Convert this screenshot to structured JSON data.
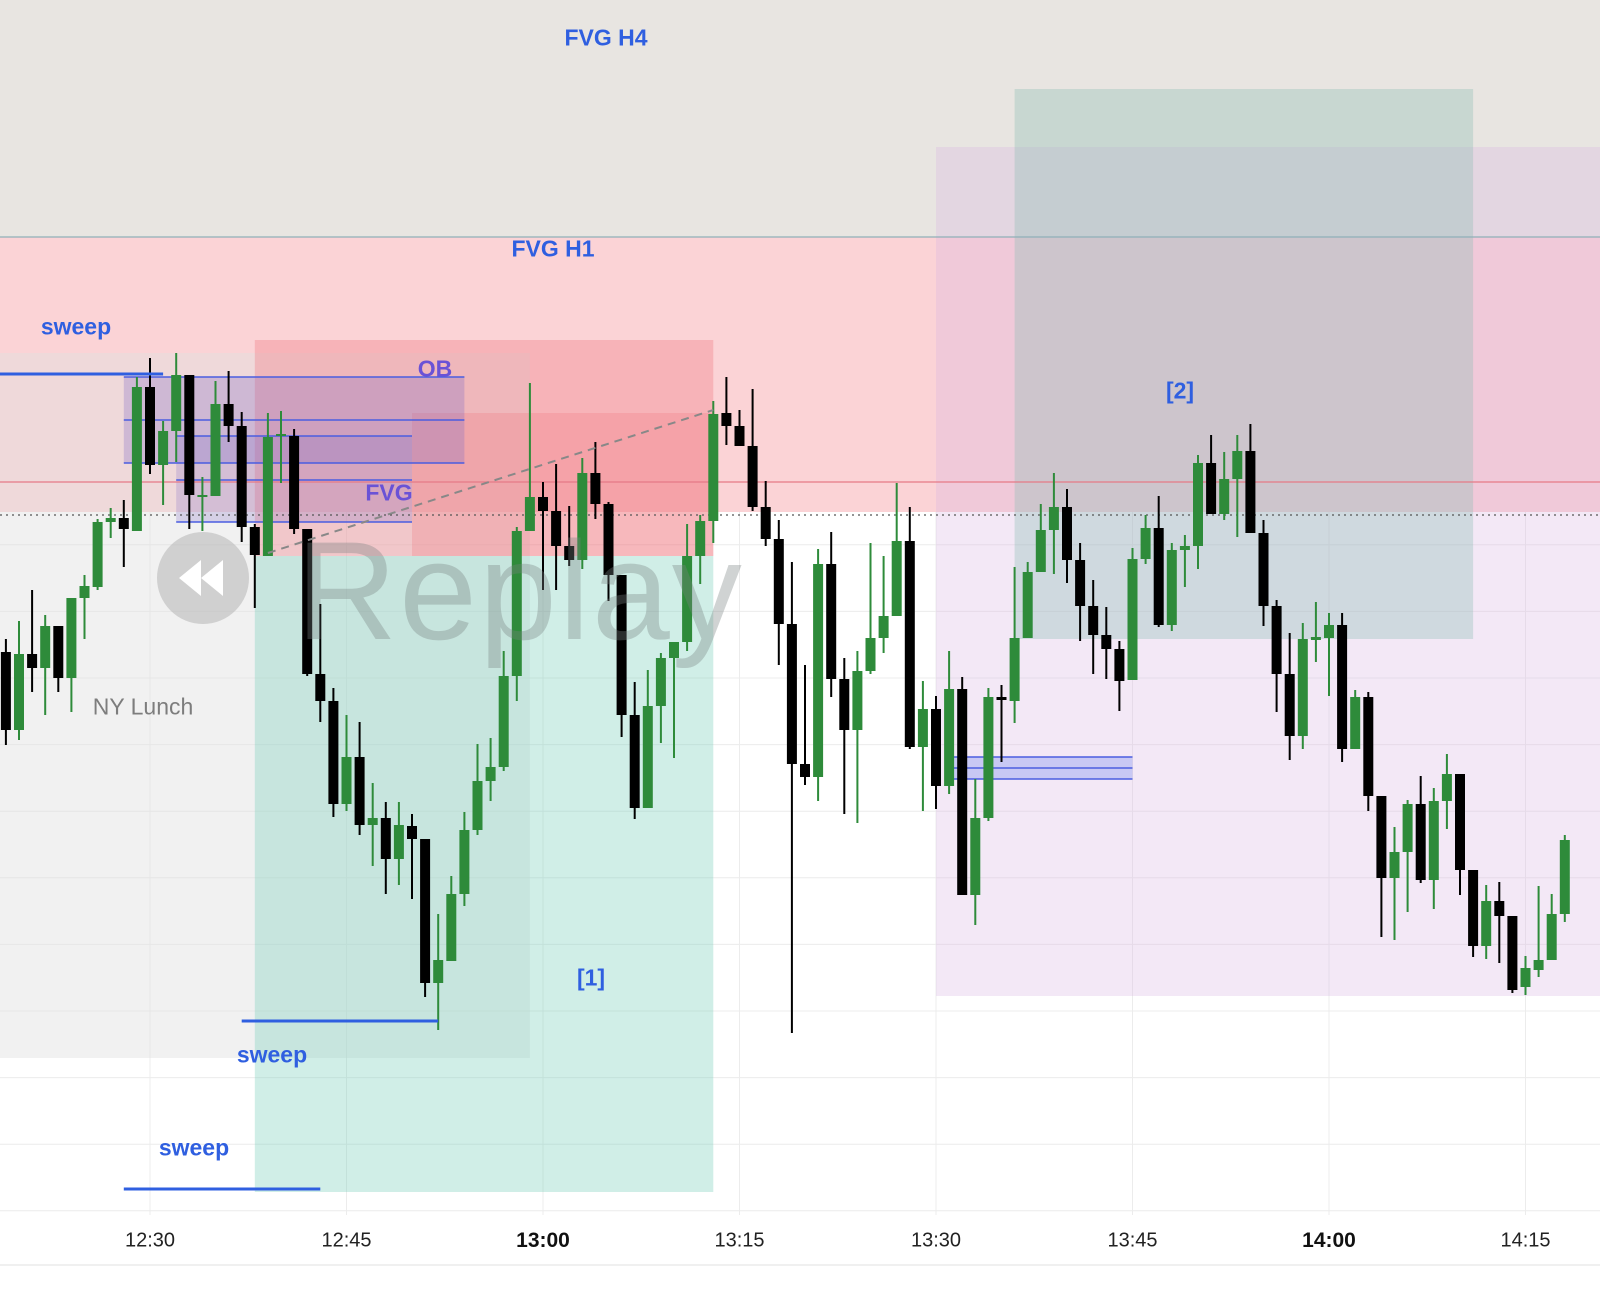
{
  "chart_data": {
    "type": "candlestick",
    "title": "",
    "interval": "1m",
    "start_time": "12:19",
    "x_ticks": [
      {
        "label": "12:30",
        "bold": false
      },
      {
        "label": "12:45",
        "bold": false
      },
      {
        "label": "13:00",
        "bold": true
      },
      {
        "label": "13:15",
        "bold": false
      },
      {
        "label": "13:30",
        "bold": false
      },
      {
        "label": "13:45",
        "bold": false
      },
      {
        "label": "14:00",
        "bold": true
      },
      {
        "label": "14:15",
        "bold": false
      }
    ],
    "price_axis": "not shown (relative price units)",
    "grid": true,
    "colors": {
      "up": "#2e8b3a",
      "down": "#000000",
      "sweep": "#2f5fe0"
    },
    "ohlc": [
      [
        44.8,
        46.1,
        35.5,
        37.0
      ],
      [
        37.0,
        47.9,
        36.0,
        44.6
      ],
      [
        44.6,
        51.0,
        40.8,
        43.2
      ],
      [
        43.2,
        48.5,
        38.5,
        47.4
      ],
      [
        47.4,
        47.4,
        40.8,
        42.2
      ],
      [
        42.2,
        50.2,
        38.8,
        50.2
      ],
      [
        50.2,
        52.5,
        46.1,
        51.4
      ],
      [
        51.3,
        58.1,
        51.0,
        57.8
      ],
      [
        57.8,
        59.2,
        56.2,
        58.2
      ],
      [
        58.2,
        60.0,
        53.3,
        57.1
      ],
      [
        56.9,
        72.3,
        56.9,
        71.3
      ],
      [
        71.3,
        74.2,
        62.6,
        63.5
      ],
      [
        63.5,
        67.9,
        59.5,
        66.9
      ],
      [
        66.9,
        74.7,
        63.8,
        72.5
      ],
      [
        72.5,
        72.5,
        57.1,
        60.5
      ],
      [
        60.5,
        62.3,
        56.9,
        60.5
      ],
      [
        60.4,
        71.9,
        60.4,
        69.6
      ],
      [
        69.6,
        72.9,
        65.8,
        67.4
      ],
      [
        67.4,
        68.8,
        55.8,
        57.3
      ],
      [
        57.3,
        57.6,
        49.2,
        54.5
      ],
      [
        54.4,
        68.7,
        54.4,
        66.3
      ],
      [
        66.4,
        68.9,
        61.7,
        66.6
      ],
      [
        66.4,
        67.1,
        56.6,
        57.1
      ],
      [
        57.1,
        57.1,
        42.4,
        42.6
      ],
      [
        42.6,
        49.6,
        37.8,
        39.9
      ],
      [
        39.9,
        41.2,
        28.3,
        29.6
      ],
      [
        29.6,
        38.5,
        28.9,
        34.3
      ],
      [
        34.3,
        37.8,
        26.5,
        27.5
      ],
      [
        27.5,
        31.7,
        23.4,
        28.2
      ],
      [
        28.2,
        29.8,
        20.6,
        24.1
      ],
      [
        24.1,
        29.8,
        21.5,
        27.5
      ],
      [
        27.4,
        28.6,
        20.1,
        26.1
      ],
      [
        26.1,
        26.1,
        10.3,
        11.7
      ],
      [
        11.7,
        18.6,
        7.0,
        14.0
      ],
      [
        13.9,
        22.4,
        13.9,
        20.6
      ],
      [
        20.6,
        28.8,
        19.4,
        27.0
      ],
      [
        27.0,
        35.6,
        26.5,
        31.9
      ],
      [
        31.9,
        36.2,
        29.9,
        33.3
      ],
      [
        33.3,
        44.9,
        32.9,
        42.4
      ],
      [
        42.4,
        57.3,
        39.9,
        56.9
      ],
      [
        56.9,
        71.7,
        56.9,
        60.3
      ],
      [
        60.3,
        61.8,
        51.0,
        58.9
      ],
      [
        58.9,
        63.6,
        51.0,
        55.4
      ],
      [
        55.4,
        59.4,
        53.4,
        54.0
      ],
      [
        54.0,
        64.2,
        53.1,
        62.7
      ],
      [
        62.7,
        65.8,
        58.1,
        59.6
      ],
      [
        59.6,
        59.8,
        49.9,
        52.5
      ],
      [
        52.5,
        52.5,
        36.3,
        38.5
      ],
      [
        38.5,
        41.8,
        28.1,
        29.2
      ],
      [
        29.2,
        43.0,
        29.2,
        39.4
      ],
      [
        39.4,
        44.7,
        35.7,
        44.2
      ],
      [
        44.2,
        45.8,
        34.2,
        45.8
      ],
      [
        45.8,
        57.6,
        44.9,
        54.4
      ],
      [
        54.4,
        58.5,
        51.6,
        57.9
      ],
      [
        57.9,
        69.9,
        55.7,
        68.6
      ],
      [
        68.7,
        72.3,
        65.5,
        67.4
      ],
      [
        67.4,
        69.0,
        65.4,
        65.4
      ],
      [
        65.4,
        71.1,
        58.9,
        59.3
      ],
      [
        59.3,
        61.9,
        55.4,
        56.1
      ],
      [
        56.1,
        58.0,
        43.5,
        47.6
      ],
      [
        47.6,
        53.8,
        6.7,
        33.6
      ],
      [
        33.6,
        43.5,
        31.5,
        32.3
      ],
      [
        32.3,
        55.1,
        29.9,
        53.6
      ],
      [
        53.6,
        56.8,
        40.3,
        42.1
      ],
      [
        42.1,
        44.2,
        28.6,
        37.0
      ],
      [
        37.0,
        44.9,
        27.7,
        42.9
      ],
      [
        42.9,
        55.7,
        42.6,
        46.2
      ],
      [
        46.2,
        54.4,
        44.7,
        48.4
      ],
      [
        48.4,
        61.7,
        48.4,
        55.9
      ],
      [
        55.9,
        59.3,
        35.1,
        35.3
      ],
      [
        35.3,
        41.9,
        28.9,
        39.1
      ],
      [
        39.1,
        40.4,
        29.1,
        31.4
      ],
      [
        31.4,
        44.9,
        30.6,
        41.1
      ],
      [
        41.1,
        42.3,
        20.5,
        20.5
      ],
      [
        20.5,
        32.1,
        17.5,
        28.2
      ],
      [
        28.2,
        41.2,
        27.9,
        40.3
      ],
      [
        40.3,
        41.5,
        33.8,
        40.0
      ],
      [
        39.9,
        53.3,
        37.7,
        46.2
      ],
      [
        46.2,
        53.8,
        46.2,
        52.8
      ],
      [
        52.8,
        59.6,
        52.8,
        57.0
      ],
      [
        57.0,
        62.7,
        52.6,
        59.3
      ],
      [
        59.3,
        61.1,
        51.7,
        54.0
      ],
      [
        54.0,
        55.7,
        45.9,
        49.4
      ],
      [
        49.4,
        52.0,
        42.6,
        46.5
      ],
      [
        46.5,
        49.3,
        42.1,
        45.1
      ],
      [
        45.1,
        45.9,
        38.9,
        41.9
      ],
      [
        42.0,
        55.2,
        42.0,
        54.1
      ],
      [
        54.1,
        58.5,
        53.6,
        57.2
      ],
      [
        57.2,
        60.4,
        47.3,
        47.5
      ],
      [
        47.5,
        55.7,
        46.9,
        55.0
      ],
      [
        55.0,
        56.5,
        51.3,
        55.4
      ],
      [
        55.4,
        64.5,
        53.1,
        63.7
      ],
      [
        63.7,
        66.5,
        58.6,
        58.6
      ],
      [
        58.6,
        64.8,
        58.0,
        62.1
      ],
      [
        62.1,
        66.5,
        56.3,
        64.9
      ],
      [
        64.9,
        67.6,
        56.7,
        56.7
      ],
      [
        56.7,
        58.0,
        47.4,
        49.4
      ],
      [
        49.4,
        50.0,
        38.8,
        42.6
      ],
      [
        42.6,
        46.7,
        34.0,
        36.4
      ],
      [
        36.4,
        47.7,
        35.1,
        46.1
      ],
      [
        46.0,
        49.8,
        43.8,
        46.3
      ],
      [
        46.2,
        48.7,
        40.4,
        47.5
      ],
      [
        47.5,
        48.7,
        33.8,
        35.1
      ],
      [
        35.1,
        41.0,
        35.1,
        40.3
      ],
      [
        40.3,
        40.8,
        28.9,
        30.4
      ],
      [
        30.4,
        30.4,
        16.3,
        22.2
      ],
      [
        22.2,
        27.3,
        16.0,
        24.8
      ],
      [
        24.8,
        30.0,
        18.8,
        29.6
      ],
      [
        29.6,
        32.4,
        21.7,
        22.0
      ],
      [
        22.0,
        31.2,
        19.1,
        29.9
      ],
      [
        29.9,
        34.6,
        27.1,
        32.6
      ],
      [
        32.6,
        32.6,
        20.5,
        23.0
      ],
      [
        23.0,
        23.0,
        14.3,
        15.4
      ],
      [
        15.4,
        21.5,
        14.1,
        19.9
      ],
      [
        19.9,
        21.8,
        13.7,
        18.4
      ],
      [
        18.4,
        18.4,
        10.7,
        11.0
      ],
      [
        11.3,
        14.4,
        10.5,
        13.2
      ],
      [
        13.0,
        21.4,
        12.3,
        14.0
      ],
      [
        14.0,
        20.6,
        14.0,
        18.6
      ],
      [
        18.6,
        26.5,
        17.8,
        26.0
      ]
    ],
    "zones": [
      {
        "name": "fvg-h4-zone",
        "from": "12:00",
        "to": "15:00",
        "top": 115,
        "bottom": 86.3,
        "color": "#e8e5e1"
      },
      {
        "name": "fvg-h1-zone",
        "from": "12:00",
        "to": "15:00",
        "top": 86.3,
        "bottom": 58.8,
        "color": "#fbd3d6"
      },
      {
        "name": "ny-lunch-zone",
        "from": "12:00",
        "to": "12:59",
        "top": 74.7,
        "bottom": 4.2,
        "color": "rgba(225,225,225,0.45)"
      },
      {
        "name": "target-zone-1",
        "from": "12:38",
        "to": "13:13",
        "top": 54.4,
        "bottom": -9.2,
        "color": "rgba(120,205,185,0.35)"
      },
      {
        "name": "stop-zone-1",
        "from": "12:38",
        "to": "13:13",
        "top": 76.0,
        "bottom": 54.4,
        "color": "rgba(240,120,130,0.35)"
      },
      {
        "name": "stop-zone-1-inner",
        "from": "12:50",
        "to": "13:13",
        "top": 68.7,
        "bottom": 54.4,
        "color": "rgba(240,110,120,0.25)"
      },
      {
        "name": "ob-zone",
        "from": "12:28",
        "to": "12:54",
        "top": 72.3,
        "bottom": 63.7,
        "color": "rgba(130,110,200,0.3)"
      },
      {
        "name": "fvg-zone",
        "from": "12:32",
        "to": "12:50",
        "top": 66.4,
        "bottom": 57.8,
        "color": "rgba(130,110,200,0.25)"
      },
      {
        "name": "zone-2-range",
        "from": "13:30",
        "to": "15:00",
        "top": 95.3,
        "bottom": 10.4,
        "color": "rgba(215,180,225,0.3)"
      },
      {
        "name": "zone-2-box",
        "from": "13:36",
        "to": "14:11",
        "top": 101.1,
        "bottom": 46.1,
        "color": "rgba(140,190,180,0.35)"
      },
      {
        "name": "small-fvg-zone",
        "from": "13:31",
        "to": "13:45",
        "top": 34.3,
        "bottom": 32.1,
        "color": "rgba(120,140,240,0.35)"
      }
    ],
    "levels": [
      {
        "name": "fvg-h1-line",
        "price": 61.8,
        "color": "#e57a86",
        "style": "solid"
      },
      {
        "name": "current-price-line",
        "price": 58.5,
        "color": "#555555",
        "style": "dotted"
      },
      {
        "name": "fvg-h4-boundary-line",
        "price": 86.3,
        "color": "#8fb0b8",
        "style": "solid"
      }
    ],
    "sweeps": [
      {
        "from": "12:00",
        "to": "12:31",
        "price": 72.6
      },
      {
        "from": "12:37",
        "to": "12:52",
        "price": 7.9
      },
      {
        "from": "12:28",
        "to": "12:43",
        "price": -8.9
      }
    ],
    "zone_lines": [
      {
        "from": "12:28",
        "to": "12:54",
        "prices": [
          72.3,
          68.0,
          63.7
        ]
      },
      {
        "from": "12:32",
        "to": "12:50",
        "prices": [
          66.4,
          62.0,
          57.8
        ]
      },
      {
        "from": "13:31",
        "to": "13:45",
        "prices": [
          34.3,
          33.2,
          32.1
        ]
      }
    ],
    "trend_line": {
      "from": {
        "t": "12:39",
        "p": 54.7
      },
      "to": {
        "t": "13:13",
        "p": 69.0
      }
    }
  },
  "annotations": {
    "fvg_h4": "FVG H4",
    "fvg_h1": "FVG H1",
    "sweep_top": "sweep",
    "sweep_mid": "sweep",
    "sweep_bottom": "sweep",
    "ob": "OB",
    "fvg": "FVG",
    "ny_lunch": "NY Lunch",
    "zone_1": "[1]",
    "zone_2": "[2]"
  },
  "watermark": {
    "text": "Replay",
    "icon": "rewind-icon"
  }
}
